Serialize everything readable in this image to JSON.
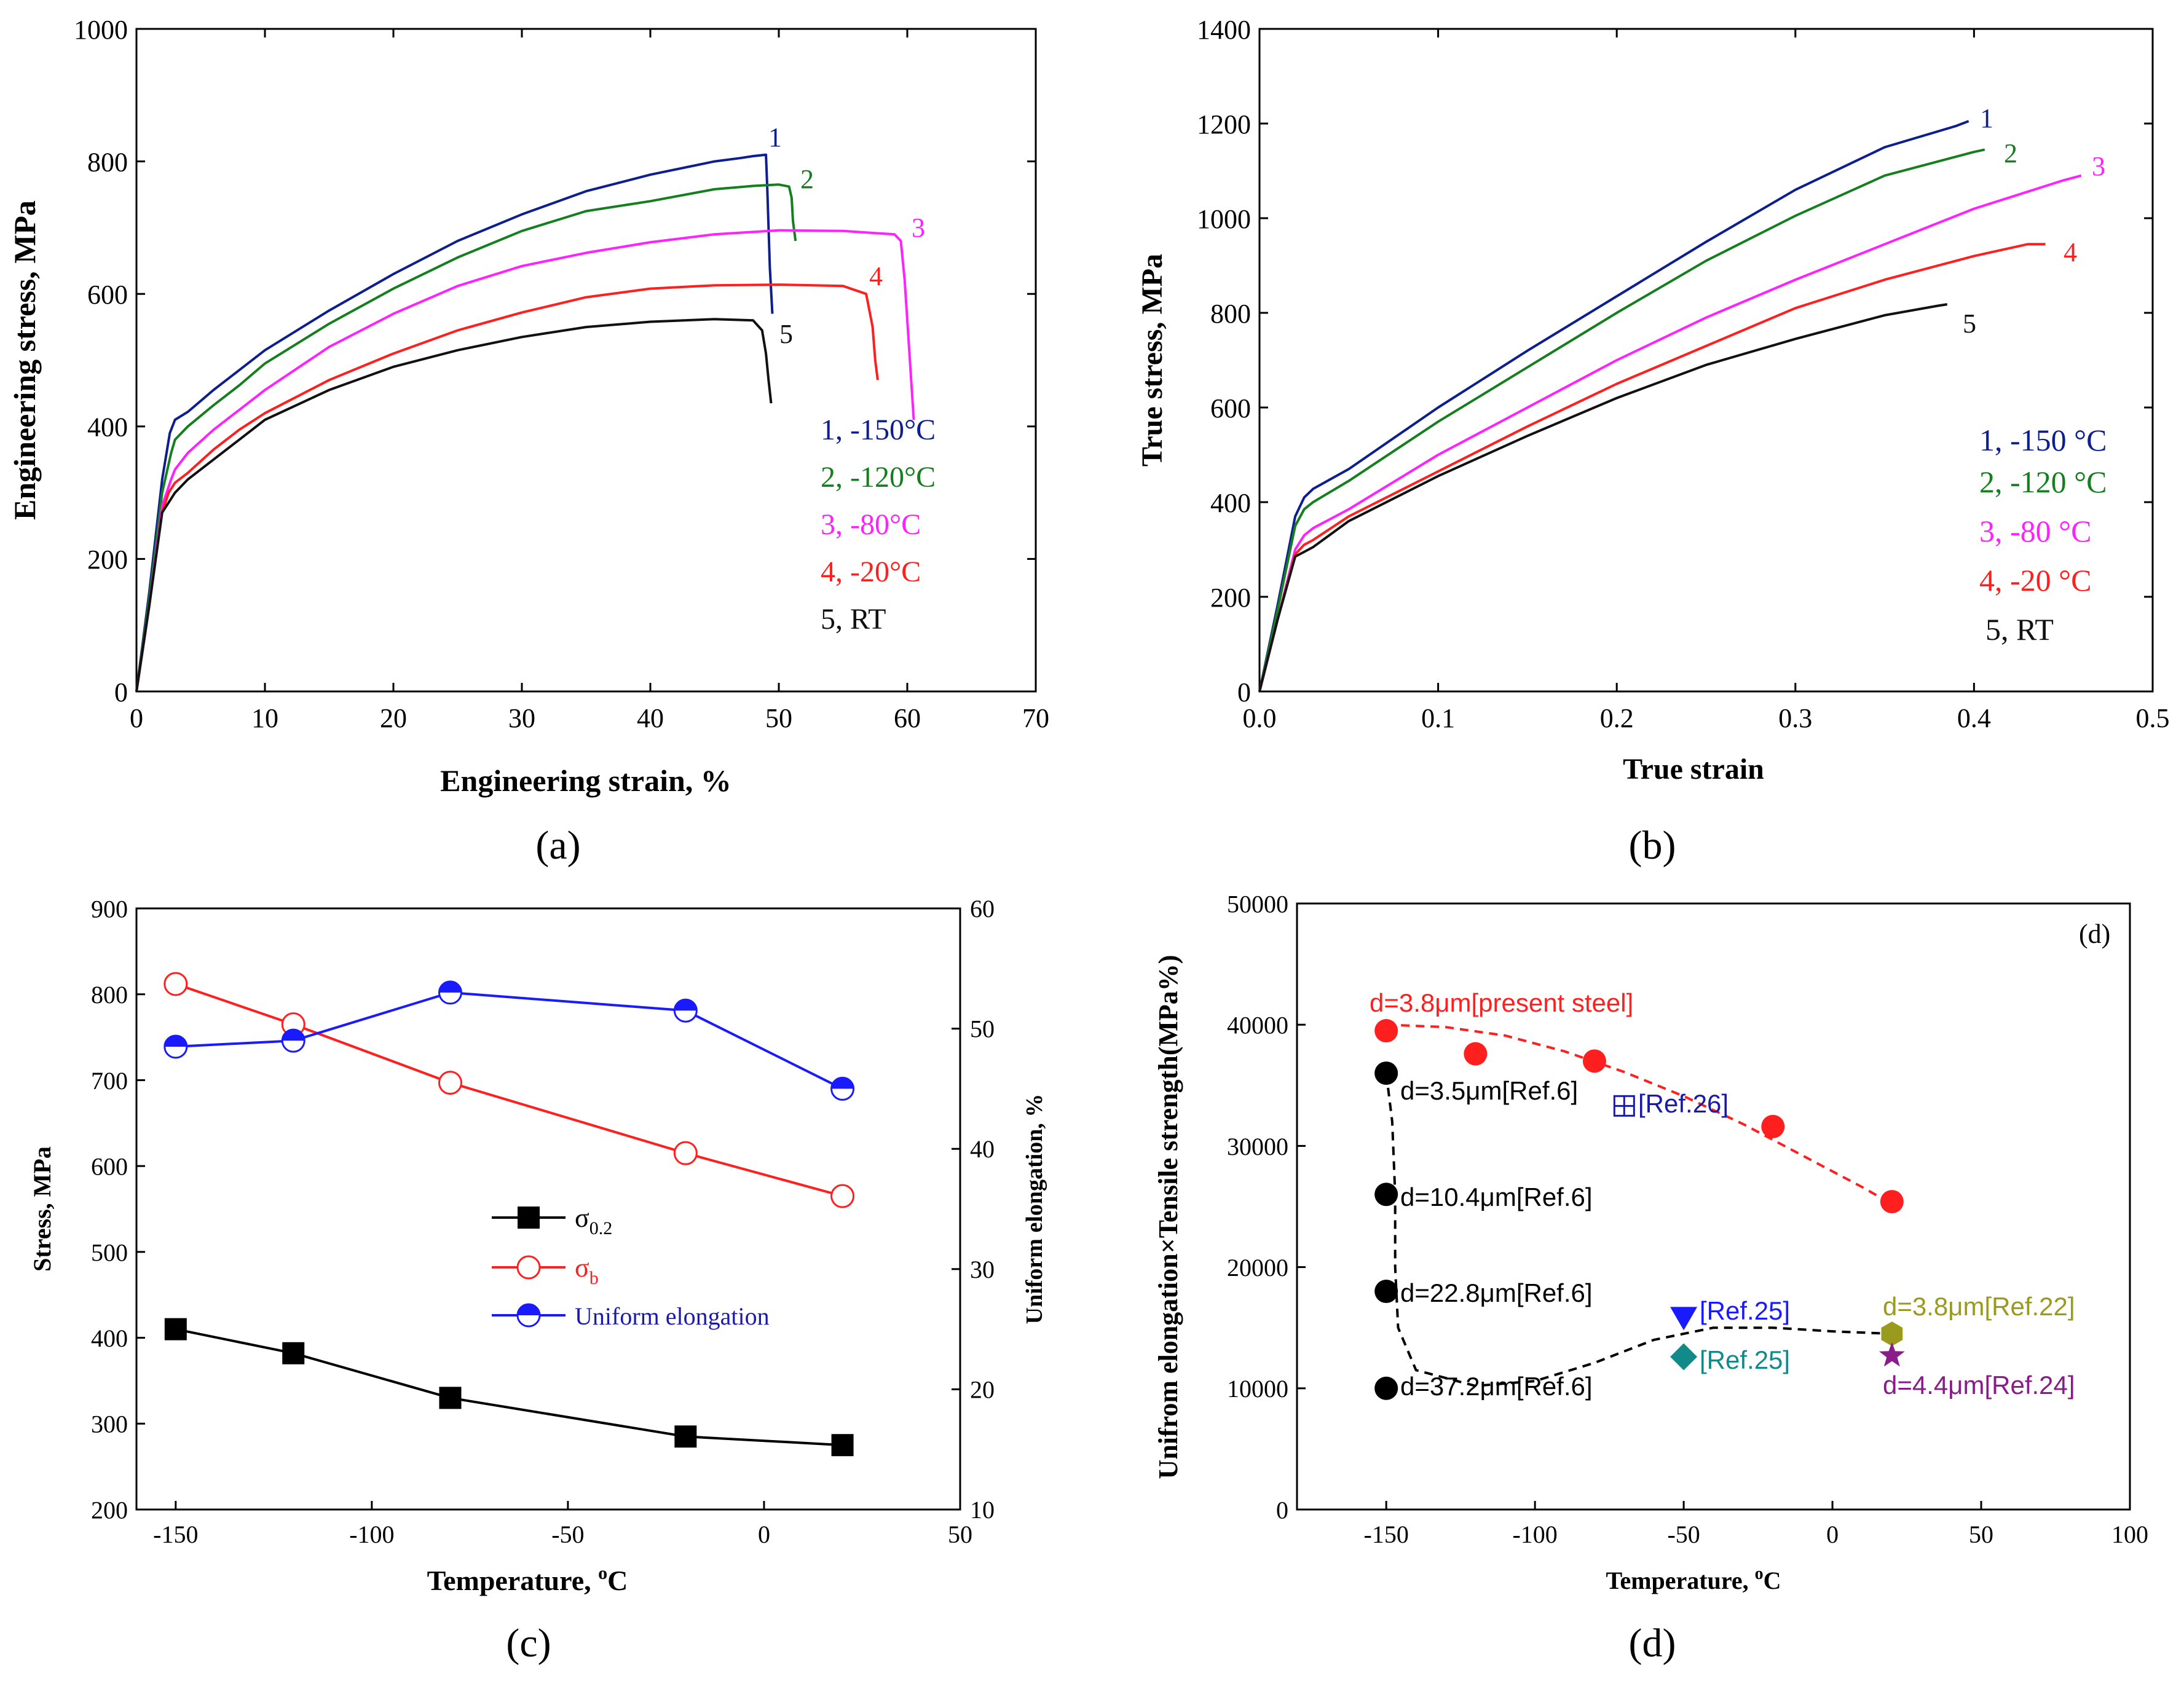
{
  "chart_data": [
    {
      "type": "line",
      "panel_label": "(a)",
      "xlabel": "Engineering strain, %",
      "ylabel": "Engineering stress, MPa",
      "xlim": [
        0,
        70
      ],
      "ylim": [
        0,
        1000
      ],
      "xticks": [
        "0",
        "10",
        "20",
        "30",
        "40",
        "50",
        "60",
        "70"
      ],
      "yticks": [
        "0",
        "200",
        "400",
        "600",
        "800",
        "1000"
      ],
      "legend": [
        "1, -150°C",
        "2, -120°C",
        "3, -80°C",
        "4, -20°C",
        "5, RT"
      ],
      "curve_labels": [
        "1",
        "2",
        "3",
        "4",
        "5"
      ],
      "series": [
        {
          "name": "1, -150°C",
          "color": "#0d1f8f",
          "x": [
            0,
            1,
            2,
            2.6,
            3,
            4,
            6,
            8,
            10,
            15,
            20,
            25,
            30,
            35,
            40,
            45,
            47,
            48,
            49,
            49.1,
            49.3,
            49.5
          ],
          "y": [
            0,
            150,
            320,
            390,
            410,
            422,
            455,
            485,
            515,
            575,
            630,
            680,
            720,
            755,
            780,
            800,
            805,
            808,
            810,
            760,
            640,
            570
          ]
        },
        {
          "name": "2, -120°C",
          "color": "#157f1f",
          "x": [
            0,
            1,
            2,
            2.7,
            3,
            4,
            6,
            8,
            10,
            15,
            20,
            25,
            30,
            35,
            40,
            45,
            48,
            50,
            50.8,
            51,
            51.1,
            51.3
          ],
          "y": [
            0,
            140,
            300,
            360,
            380,
            400,
            432,
            462,
            495,
            555,
            608,
            655,
            695,
            725,
            740,
            758,
            763,
            765,
            762,
            745,
            710,
            680
          ]
        },
        {
          "name": "3, -80°C",
          "color": "#ff21ff",
          "x": [
            0,
            1,
            2,
            2.7,
            3,
            4,
            6,
            8,
            10,
            15,
            20,
            25,
            30,
            35,
            40,
            45,
            50,
            55,
            59,
            59.5,
            59.8,
            60.2,
            60.5
          ],
          "y": [
            0,
            130,
            280,
            320,
            335,
            360,
            395,
            425,
            455,
            520,
            570,
            612,
            642,
            662,
            678,
            690,
            696,
            695,
            690,
            680,
            620,
            500,
            410
          ]
        },
        {
          "name": "4, -20°C",
          "color": "#ff1f1f",
          "x": [
            0,
            1,
            2,
            2.5,
            3,
            4,
            6,
            8,
            10,
            15,
            20,
            25,
            30,
            35,
            40,
            45,
            50,
            55,
            56.8,
            57.3,
            57.5,
            57.7
          ],
          "y": [
            0,
            130,
            270,
            300,
            315,
            330,
            365,
            395,
            420,
            470,
            510,
            545,
            572,
            595,
            608,
            613,
            614,
            612,
            600,
            550,
            500,
            470
          ]
        },
        {
          "name": "5, RT",
          "color": "#111111",
          "x": [
            0,
            1,
            2,
            2.5,
            3,
            4,
            6,
            8,
            10,
            15,
            20,
            25,
            30,
            35,
            40,
            45,
            48,
            48.7,
            49,
            49.2,
            49.4
          ],
          "y": [
            0,
            130,
            270,
            285,
            300,
            320,
            350,
            380,
            410,
            455,
            490,
            515,
            535,
            550,
            558,
            562,
            560,
            545,
            510,
            470,
            435
          ]
        }
      ]
    },
    {
      "type": "line",
      "panel_label": "(b)",
      "xlabel": "True strain",
      "ylabel": "True stress, MPa",
      "xlim": [
        0,
        0.5
      ],
      "ylim": [
        0,
        1400
      ],
      "xticks": [
        "0.0",
        "0.1",
        "0.2",
        "0.3",
        "0.4",
        "0.5"
      ],
      "yticks": [
        "0",
        "200",
        "400",
        "600",
        "800",
        "1000",
        "1200",
        "1400"
      ],
      "legend": [
        "1, -150 °C",
        "2, -120 °C",
        "3, -80 °C",
        "4, -20 °C",
        "5, RT"
      ],
      "curve_labels": [
        "1",
        "2",
        "3",
        "4",
        "5"
      ],
      "series": [
        {
          "name": "1, -150 °C",
          "color": "#0d1f8f",
          "x": [
            0,
            0.01,
            0.02,
            0.025,
            0.03,
            0.05,
            0.1,
            0.15,
            0.2,
            0.25,
            0.3,
            0.35,
            0.39,
            0.397
          ],
          "y": [
            0,
            180,
            370,
            410,
            428,
            470,
            600,
            720,
            835,
            950,
            1060,
            1150,
            1195,
            1205
          ]
        },
        {
          "name": "2, -120 °C",
          "color": "#157f1f",
          "x": [
            0,
            0.01,
            0.02,
            0.025,
            0.03,
            0.05,
            0.1,
            0.15,
            0.2,
            0.25,
            0.3,
            0.35,
            0.4,
            0.406
          ],
          "y": [
            0,
            170,
            350,
            385,
            400,
            445,
            570,
            685,
            800,
            910,
            1005,
            1090,
            1140,
            1145
          ]
        },
        {
          "name": "3, -80 °C",
          "color": "#ff21ff",
          "x": [
            0,
            0.01,
            0.02,
            0.025,
            0.03,
            0.05,
            0.1,
            0.15,
            0.2,
            0.25,
            0.3,
            0.35,
            0.4,
            0.45,
            0.46
          ],
          "y": [
            0,
            150,
            300,
            330,
            345,
            385,
            500,
            600,
            700,
            790,
            870,
            945,
            1020,
            1080,
            1090
          ]
        },
        {
          "name": "4, -20 °C",
          "color": "#ff1f1f",
          "x": [
            0,
            0.01,
            0.02,
            0.025,
            0.03,
            0.05,
            0.1,
            0.15,
            0.2,
            0.25,
            0.3,
            0.35,
            0.4,
            0.43,
            0.44
          ],
          "y": [
            0,
            150,
            290,
            310,
            320,
            370,
            465,
            560,
            650,
            730,
            810,
            870,
            920,
            945,
            945
          ]
        },
        {
          "name": "5, RT",
          "color": "#111111",
          "x": [
            0,
            0.01,
            0.02,
            0.025,
            0.03,
            0.05,
            0.1,
            0.15,
            0.2,
            0.25,
            0.3,
            0.35,
            0.38,
            0.385
          ],
          "y": [
            0,
            150,
            285,
            295,
            305,
            360,
            455,
            540,
            620,
            690,
            745,
            795,
            815,
            818
          ]
        }
      ]
    },
    {
      "type": "line",
      "panel_label": "(c)",
      "xlabel": "Temperature, °C",
      "ylabel": "Stress, MPa",
      "y2label": "Uniform elongation, %",
      "xlim": [
        -160,
        50
      ],
      "ylim": [
        200,
        900
      ],
      "y2lim": [
        10,
        60
      ],
      "xticks": [
        "-150",
        "-100",
        "-50",
        "0",
        "50"
      ],
      "yticks": [
        "200",
        "300",
        "400",
        "500",
        "600",
        "700",
        "800",
        "900"
      ],
      "y2ticks": [
        "10",
        "20",
        "30",
        "40",
        "50",
        "60"
      ],
      "legend_title_parts": [
        {
          "base": "σ",
          "sub": "0.2"
        },
        {
          "base": "σ",
          "sub": "b"
        },
        {
          "base": "Uniform elongation",
          "sub": ""
        }
      ],
      "categories": [
        -150,
        -120,
        -80,
        -20,
        20
      ],
      "series": [
        {
          "name": "σ0.2",
          "color": "#000000",
          "marker": "square-filled",
          "axis": "left",
          "values": [
            410,
            382,
            330,
            285,
            275
          ]
        },
        {
          "name": "σb",
          "color": "#ff1f1f",
          "marker": "circle-open",
          "axis": "left",
          "values": [
            812,
            765,
            697,
            615,
            565
          ]
        },
        {
          "name": "Uniform elongation",
          "color": "#1a1aff",
          "marker": "circle-half",
          "axis": "right",
          "values": [
            48.5,
            49,
            53,
            51.5,
            45
          ]
        }
      ]
    },
    {
      "type": "scatter",
      "panel_label": "(d)",
      "inner_label": "(d)",
      "xlabel": "Temperature, °C",
      "ylabel": "Unifrom elongation×Tensile strength(MPa%)",
      "xlim": [
        -180,
        100
      ],
      "ylim": [
        0,
        50000
      ],
      "xticks": [
        "-150",
        "-100",
        "-50",
        "0",
        "50",
        "100"
      ],
      "yticks": [
        "0",
        "10000",
        "20000",
        "30000",
        "40000",
        "50000"
      ],
      "series": [
        {
          "name": "d=3.8μm[present steel]",
          "color": "#ff1f1f",
          "marker": "circle",
          "x": [
            -150,
            -120,
            -80,
            -20,
            20
          ],
          "y": [
            39500,
            37600,
            37000,
            31600,
            25400
          ]
        },
        {
          "name": "Ref.6",
          "color": "#000000",
          "marker": "circle",
          "x": [
            -150,
            -150,
            -150,
            -150
          ],
          "y": [
            36000,
            26000,
            18000,
            10000
          ]
        },
        {
          "name": "[Ref.26]",
          "color": "#1a1aaa",
          "marker": "square-plus",
          "x": [
            -70
          ],
          "y": [
            33300
          ]
        },
        {
          "name": "[Ref.25] triangle",
          "color": "#1a1aff",
          "marker": "triangle-down",
          "x": [
            -50
          ],
          "y": [
            15800
          ]
        },
        {
          "name": "[Ref.25] diamond",
          "color": "#138a8a",
          "marker": "diamond",
          "x": [
            -50
          ],
          "y": [
            12600
          ]
        },
        {
          "name": "d=3.8μm[Ref.22]",
          "color": "#9a9a1e",
          "marker": "hexagon",
          "x": [
            20
          ],
          "y": [
            14500
          ]
        },
        {
          "name": "d=4.4μm[Ref.24]",
          "color": "#8b1a8b",
          "marker": "star",
          "x": [
            20
          ],
          "y": [
            12700
          ]
        }
      ],
      "trend_red": {
        "x": [
          -150,
          -130,
          -110,
          -90,
          -70,
          -50,
          -30,
          -10,
          10,
          20
        ],
        "y": [
          40000,
          39800,
          39100,
          37800,
          36100,
          34100,
          31800,
          29200,
          26600,
          25200
        ]
      },
      "trend_black": {
        "x": [
          -150,
          -148,
          -147,
          -147,
          -146,
          -140,
          -120,
          -100,
          -80,
          -60,
          -40,
          -20,
          0,
          20
        ],
        "y": [
          36000,
          32000,
          26000,
          20000,
          15000,
          11500,
          10200,
          10600,
          12100,
          14000,
          15000,
          15000,
          14700,
          14500
        ]
      },
      "annotations": {
        "present": "d=3.8μm[present steel]",
        "ref6_a": "d=3.5μm[Ref.6]",
        "ref26": "[Ref.26]",
        "ref6_b": "d=10.4μm[Ref.6]",
        "ref6_c": "d=22.8μm[Ref.6]",
        "ref25_a": "[Ref.25]",
        "ref22": "d=3.8μm[Ref.22]",
        "ref25_b": "[Ref.25]",
        "ref24": "d=4.4μm[Ref.24]",
        "ref6_d": "d=37.2μm[Ref.6]"
      }
    }
  ]
}
